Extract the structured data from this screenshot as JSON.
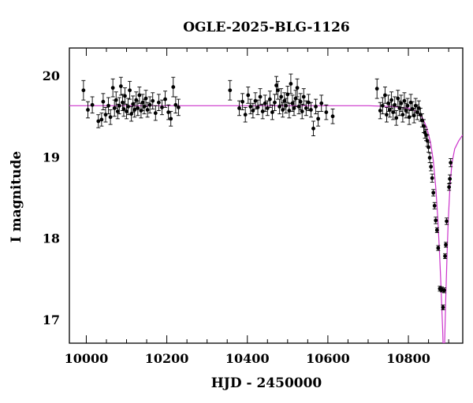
{
  "chart_data": {
    "type": "scatter",
    "title": "OGLE-2025-BLG-1126",
    "xlabel": "HJD - 2450000",
    "ylabel": "I magnitude",
    "xlim": [
      9958,
      10935
    ],
    "ylim": [
      20.34,
      16.71
    ],
    "y_inverted": true,
    "x_ticks": [
      10000,
      10200,
      10400,
      10600,
      10800
    ],
    "y_ticks": [
      17,
      18,
      19,
      20
    ],
    "grid": false,
    "legend": "none",
    "colors": {
      "points": "#000000",
      "model": "#cc33cc"
    },
    "model": {
      "baseline": 19.63,
      "t0": 10888,
      "points": [
        {
          "x": 9958,
          "y": 19.63
        },
        {
          "x": 10700,
          "y": 19.63
        },
        {
          "x": 10760,
          "y": 19.62
        },
        {
          "x": 10800,
          "y": 19.6
        },
        {
          "x": 10820,
          "y": 19.56
        },
        {
          "x": 10835,
          "y": 19.48
        },
        {
          "x": 10845,
          "y": 19.37
        },
        {
          "x": 10855,
          "y": 19.18
        },
        {
          "x": 10862,
          "y": 18.95
        },
        {
          "x": 10868,
          "y": 18.62
        },
        {
          "x": 10873,
          "y": 18.25
        },
        {
          "x": 10877,
          "y": 17.85
        },
        {
          "x": 10880,
          "y": 17.52
        },
        {
          "x": 10883,
          "y": 17.15
        },
        {
          "x": 10885,
          "y": 16.88
        },
        {
          "x": 10886,
          "y": 16.71
        },
        {
          "x": 10890,
          "y": 16.71
        },
        {
          "x": 10891,
          "y": 16.9
        },
        {
          "x": 10893,
          "y": 17.28
        },
        {
          "x": 10896,
          "y": 17.8
        },
        {
          "x": 10899,
          "y": 18.22
        },
        {
          "x": 10903,
          "y": 18.62
        },
        {
          "x": 10908,
          "y": 18.92
        },
        {
          "x": 10915,
          "y": 19.1
        },
        {
          "x": 10925,
          "y": 19.2
        },
        {
          "x": 10935,
          "y": 19.27
        }
      ]
    },
    "points": [
      {
        "x": 9993,
        "y": 19.82,
        "err": 0.12
      },
      {
        "x": 10004,
        "y": 19.58,
        "err": 0.1
      },
      {
        "x": 10015,
        "y": 19.64,
        "err": 0.1
      },
      {
        "x": 10030,
        "y": 19.44,
        "err": 0.08
      },
      {
        "x": 10038,
        "y": 19.46,
        "err": 0.08
      },
      {
        "x": 10042,
        "y": 19.68,
        "err": 0.1
      },
      {
        "x": 10048,
        "y": 19.52,
        "err": 0.09
      },
      {
        "x": 10055,
        "y": 19.63,
        "err": 0.1
      },
      {
        "x": 10060,
        "y": 19.49,
        "err": 0.09
      },
      {
        "x": 10066,
        "y": 19.85,
        "err": 0.11
      },
      {
        "x": 10070,
        "y": 19.6,
        "err": 0.1
      },
      {
        "x": 10074,
        "y": 19.7,
        "err": 0.1
      },
      {
        "x": 10078,
        "y": 19.56,
        "err": 0.09
      },
      {
        "x": 10082,
        "y": 19.63,
        "err": 0.1
      },
      {
        "x": 10086,
        "y": 19.87,
        "err": 0.11
      },
      {
        "x": 10090,
        "y": 19.67,
        "err": 0.1
      },
      {
        "x": 10093,
        "y": 19.59,
        "err": 0.09
      },
      {
        "x": 10096,
        "y": 19.75,
        "err": 0.1
      },
      {
        "x": 10100,
        "y": 19.56,
        "err": 0.09
      },
      {
        "x": 10104,
        "y": 19.62,
        "err": 0.1
      },
      {
        "x": 10108,
        "y": 19.82,
        "err": 0.11
      },
      {
        "x": 10112,
        "y": 19.53,
        "err": 0.09
      },
      {
        "x": 10116,
        "y": 19.65,
        "err": 0.1
      },
      {
        "x": 10120,
        "y": 19.58,
        "err": 0.09
      },
      {
        "x": 10124,
        "y": 19.7,
        "err": 0.1
      },
      {
        "x": 10128,
        "y": 19.6,
        "err": 0.09
      },
      {
        "x": 10132,
        "y": 19.76,
        "err": 0.1
      },
      {
        "x": 10136,
        "y": 19.57,
        "err": 0.09
      },
      {
        "x": 10140,
        "y": 19.67,
        "err": 0.1
      },
      {
        "x": 10144,
        "y": 19.62,
        "err": 0.09
      },
      {
        "x": 10148,
        "y": 19.72,
        "err": 0.1
      },
      {
        "x": 10152,
        "y": 19.58,
        "err": 0.09
      },
      {
        "x": 10158,
        "y": 19.64,
        "err": 0.1
      },
      {
        "x": 10165,
        "y": 19.69,
        "err": 0.1
      },
      {
        "x": 10172,
        "y": 19.54,
        "err": 0.09
      },
      {
        "x": 10180,
        "y": 19.67,
        "err": 0.1
      },
      {
        "x": 10188,
        "y": 19.61,
        "err": 0.09
      },
      {
        "x": 10196,
        "y": 19.71,
        "err": 0.1
      },
      {
        "x": 10204,
        "y": 19.55,
        "err": 0.09
      },
      {
        "x": 10210,
        "y": 19.47,
        "err": 0.09
      },
      {
        "x": 10216,
        "y": 19.86,
        "err": 0.12
      },
      {
        "x": 10222,
        "y": 19.64,
        "err": 0.1
      },
      {
        "x": 10229,
        "y": 19.61,
        "err": 0.1
      },
      {
        "x": 10357,
        "y": 19.82,
        "err": 0.12
      },
      {
        "x": 10380,
        "y": 19.6,
        "err": 0.09
      },
      {
        "x": 10388,
        "y": 19.68,
        "err": 0.1
      },
      {
        "x": 10395,
        "y": 19.52,
        "err": 0.09
      },
      {
        "x": 10402,
        "y": 19.76,
        "err": 0.1
      },
      {
        "x": 10408,
        "y": 19.62,
        "err": 0.09
      },
      {
        "x": 10414,
        "y": 19.57,
        "err": 0.09
      },
      {
        "x": 10420,
        "y": 19.69,
        "err": 0.1
      },
      {
        "x": 10426,
        "y": 19.61,
        "err": 0.09
      },
      {
        "x": 10432,
        "y": 19.74,
        "err": 0.1
      },
      {
        "x": 10438,
        "y": 19.56,
        "err": 0.09
      },
      {
        "x": 10444,
        "y": 19.66,
        "err": 0.1
      },
      {
        "x": 10450,
        "y": 19.6,
        "err": 0.09
      },
      {
        "x": 10456,
        "y": 19.71,
        "err": 0.1
      },
      {
        "x": 10462,
        "y": 19.55,
        "err": 0.09
      },
      {
        "x": 10468,
        "y": 19.67,
        "err": 0.1
      },
      {
        "x": 10472,
        "y": 19.88,
        "err": 0.11
      },
      {
        "x": 10476,
        "y": 19.82,
        "err": 0.11
      },
      {
        "x": 10480,
        "y": 19.62,
        "err": 0.09
      },
      {
        "x": 10484,
        "y": 19.74,
        "err": 0.1
      },
      {
        "x": 10488,
        "y": 19.58,
        "err": 0.09
      },
      {
        "x": 10492,
        "y": 19.69,
        "err": 0.1
      },
      {
        "x": 10496,
        "y": 19.63,
        "err": 0.09
      },
      {
        "x": 10500,
        "y": 19.77,
        "err": 0.1
      },
      {
        "x": 10504,
        "y": 19.57,
        "err": 0.09
      },
      {
        "x": 10508,
        "y": 19.9,
        "err": 0.12
      },
      {
        "x": 10512,
        "y": 19.66,
        "err": 0.1
      },
      {
        "x": 10516,
        "y": 19.6,
        "err": 0.09
      },
      {
        "x": 10520,
        "y": 19.72,
        "err": 0.1
      },
      {
        "x": 10524,
        "y": 19.85,
        "err": 0.11
      },
      {
        "x": 10528,
        "y": 19.62,
        "err": 0.09
      },
      {
        "x": 10532,
        "y": 19.68,
        "err": 0.1
      },
      {
        "x": 10536,
        "y": 19.56,
        "err": 0.09
      },
      {
        "x": 10540,
        "y": 19.74,
        "err": 0.1
      },
      {
        "x": 10546,
        "y": 19.6,
        "err": 0.09
      },
      {
        "x": 10552,
        "y": 19.67,
        "err": 0.1
      },
      {
        "x": 10558,
        "y": 19.58,
        "err": 0.09
      },
      {
        "x": 10564,
        "y": 19.35,
        "err": 0.09
      },
      {
        "x": 10570,
        "y": 19.62,
        "err": 0.09
      },
      {
        "x": 10576,
        "y": 19.47,
        "err": 0.09
      },
      {
        "x": 10584,
        "y": 19.66,
        "err": 0.1
      },
      {
        "x": 10596,
        "y": 19.55,
        "err": 0.09
      },
      {
        "x": 10612,
        "y": 19.5,
        "err": 0.09
      },
      {
        "x": 10722,
        "y": 19.84,
        "err": 0.12
      },
      {
        "x": 10730,
        "y": 19.57,
        "err": 0.1
      },
      {
        "x": 10736,
        "y": 19.63,
        "err": 0.1
      },
      {
        "x": 10742,
        "y": 19.76,
        "err": 0.1
      },
      {
        "x": 10746,
        "y": 19.52,
        "err": 0.09
      },
      {
        "x": 10750,
        "y": 19.66,
        "err": 0.1
      },
      {
        "x": 10754,
        "y": 19.58,
        "err": 0.09
      },
      {
        "x": 10758,
        "y": 19.7,
        "err": 0.1
      },
      {
        "x": 10762,
        "y": 19.55,
        "err": 0.09
      },
      {
        "x": 10766,
        "y": 19.64,
        "err": 0.1
      },
      {
        "x": 10770,
        "y": 19.48,
        "err": 0.09
      },
      {
        "x": 10774,
        "y": 19.72,
        "err": 0.1
      },
      {
        "x": 10778,
        "y": 19.6,
        "err": 0.09
      },
      {
        "x": 10782,
        "y": 19.66,
        "err": 0.1
      },
      {
        "x": 10786,
        "y": 19.52,
        "err": 0.09
      },
      {
        "x": 10790,
        "y": 19.69,
        "err": 0.1
      },
      {
        "x": 10794,
        "y": 19.57,
        "err": 0.09
      },
      {
        "x": 10798,
        "y": 19.63,
        "err": 0.09
      },
      {
        "x": 10802,
        "y": 19.49,
        "err": 0.09
      },
      {
        "x": 10806,
        "y": 19.67,
        "err": 0.1
      },
      {
        "x": 10810,
        "y": 19.59,
        "err": 0.09
      },
      {
        "x": 10814,
        "y": 19.51,
        "err": 0.09
      },
      {
        "x": 10818,
        "y": 19.63,
        "err": 0.09
      },
      {
        "x": 10822,
        "y": 19.55,
        "err": 0.09
      },
      {
        "x": 10826,
        "y": 19.6,
        "err": 0.09
      },
      {
        "x": 10830,
        "y": 19.52,
        "err": 0.08
      },
      {
        "x": 10834,
        "y": 19.45,
        "err": 0.08
      },
      {
        "x": 10838,
        "y": 19.38,
        "err": 0.08
      },
      {
        "x": 10841,
        "y": 19.3,
        "err": 0.07
      },
      {
        "x": 10844,
        "y": 19.27,
        "err": 0.07
      },
      {
        "x": 10847,
        "y": 19.2,
        "err": 0.07
      },
      {
        "x": 10850,
        "y": 19.12,
        "err": 0.06
      },
      {
        "x": 10853,
        "y": 18.99,
        "err": 0.06
      },
      {
        "x": 10856,
        "y": 18.88,
        "err": 0.05
      },
      {
        "x": 10859,
        "y": 18.74,
        "err": 0.05
      },
      {
        "x": 10862,
        "y": 18.56,
        "err": 0.04
      },
      {
        "x": 10865,
        "y": 18.4,
        "err": 0.04
      },
      {
        "x": 10868,
        "y": 18.22,
        "err": 0.04
      },
      {
        "x": 10871,
        "y": 18.1,
        "err": 0.03
      },
      {
        "x": 10874,
        "y": 17.88,
        "err": 0.03
      },
      {
        "x": 10878,
        "y": 17.38,
        "err": 0.03
      },
      {
        "x": 10883,
        "y": 17.37,
        "err": 0.03
      },
      {
        "x": 10886,
        "y": 17.15,
        "err": 0.03
      },
      {
        "x": 10889,
        "y": 17.36,
        "err": 0.03
      },
      {
        "x": 10891,
        "y": 17.78,
        "err": 0.03
      },
      {
        "x": 10893,
        "y": 17.92,
        "err": 0.03
      },
      {
        "x": 10895,
        "y": 18.21,
        "err": 0.04
      },
      {
        "x": 10901,
        "y": 18.63,
        "err": 0.04
      },
      {
        "x": 10903,
        "y": 18.73,
        "err": 0.05
      },
      {
        "x": 10905,
        "y": 18.93,
        "err": 0.05
      }
    ]
  }
}
